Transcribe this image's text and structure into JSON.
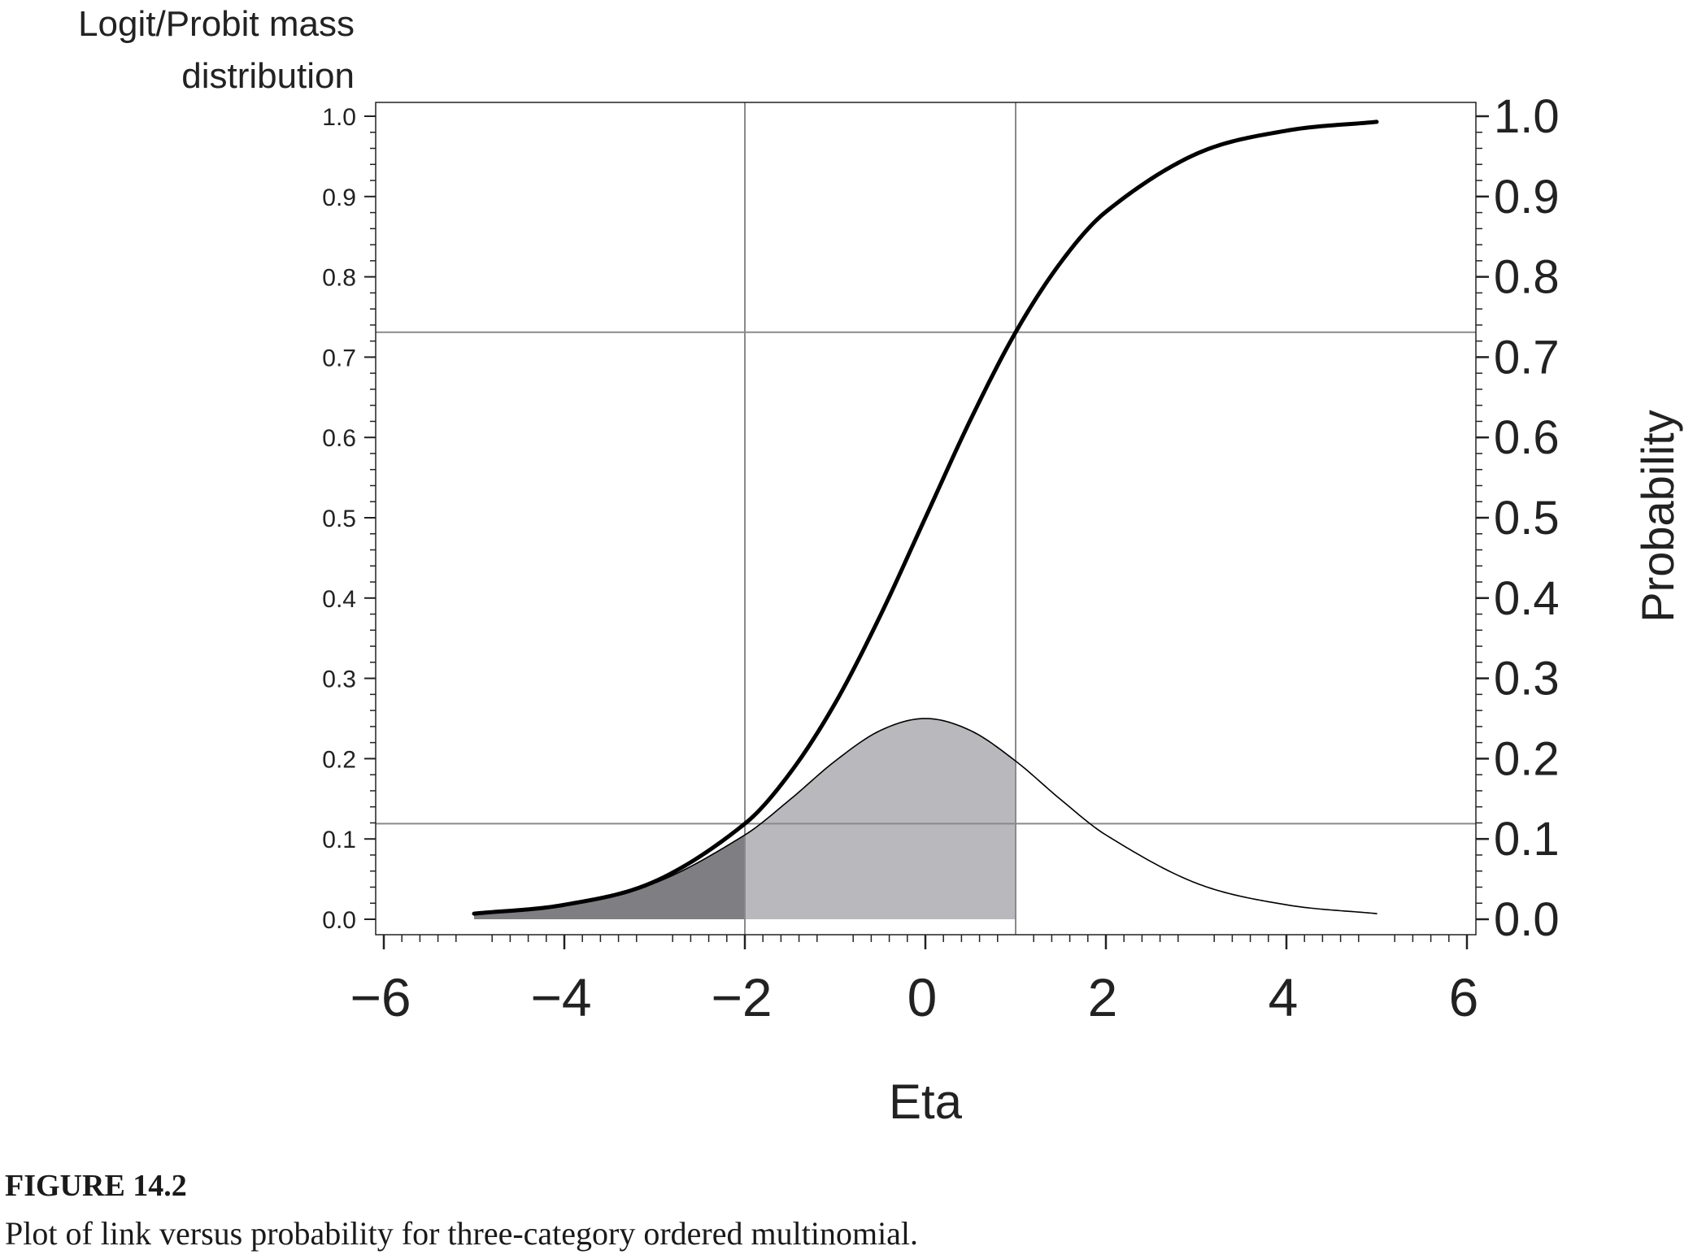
{
  "chart_data": {
    "type": "line",
    "xlabel": "Eta",
    "ylabel_left": "Logit/Probit mass distribution",
    "ylabel_left_lines": [
      "Logit/Probit mass",
      "distribution"
    ],
    "ylabel_right": "Probability",
    "xlim": [
      -6,
      6
    ],
    "ylim": [
      0,
      1
    ],
    "x_ticks": [
      -6,
      -4,
      -2,
      0,
      2,
      4,
      6
    ],
    "x_tick_labels": [
      "−6",
      "−4",
      "−2",
      "0",
      "2",
      "4",
      "6"
    ],
    "y_ticks": [
      0.0,
      0.1,
      0.2,
      0.3,
      0.4,
      0.5,
      0.6,
      0.7,
      0.8,
      0.9,
      1.0
    ],
    "y_tick_labels": [
      "0.0",
      "0.1",
      "0.2",
      "0.3",
      "0.4",
      "0.5",
      "0.6",
      "0.7",
      "0.8",
      "0.9",
      "1.0"
    ],
    "x_range_plotted": [
      -5,
      5
    ],
    "series": [
      {
        "style": "thick-black",
        "x": [
          -5,
          -4,
          -3,
          -2,
          -1.5,
          -1,
          -0.5,
          0,
          0.5,
          1,
          1.5,
          2,
          3,
          4,
          5
        ],
        "y": [
          0.007,
          0.018,
          0.047,
          0.119,
          0.182,
          0.269,
          0.378,
          0.5,
          0.622,
          0.731,
          0.818,
          0.881,
          0.953,
          0.982,
          0.993
        ]
      },
      {
        "style": "thin-black",
        "x": [
          -5,
          -4,
          -3,
          -2,
          -1.5,
          -1,
          -0.5,
          0,
          0.5,
          1,
          1.5,
          2,
          3,
          4,
          5
        ],
        "y": [
          0.007,
          0.018,
          0.045,
          0.105,
          0.149,
          0.197,
          0.235,
          0.25,
          0.235,
          0.197,
          0.149,
          0.105,
          0.045,
          0.018,
          0.007
        ]
      }
    ],
    "shaded_regions": [
      {
        "x_from": -5,
        "x_to": -2,
        "color": "#7f7f83"
      },
      {
        "x_from": -2,
        "x_to": 1,
        "color": "#b8b8bd"
      }
    ],
    "reference_lines": {
      "vertical_x": [
        -2,
        1
      ],
      "horizontal_y": [
        0.119,
        0.731
      ]
    },
    "grid": false,
    "legend": "none"
  },
  "caption": {
    "label": "FIGURE 14.2",
    "text": "Plot of link versus probability for three-category ordered multinomial."
  },
  "colors": {
    "curve": "#000000",
    "reference_line": "#8a8a8a",
    "dark_shade": "#7f7f83",
    "light_shade": "#b8b8bd"
  }
}
